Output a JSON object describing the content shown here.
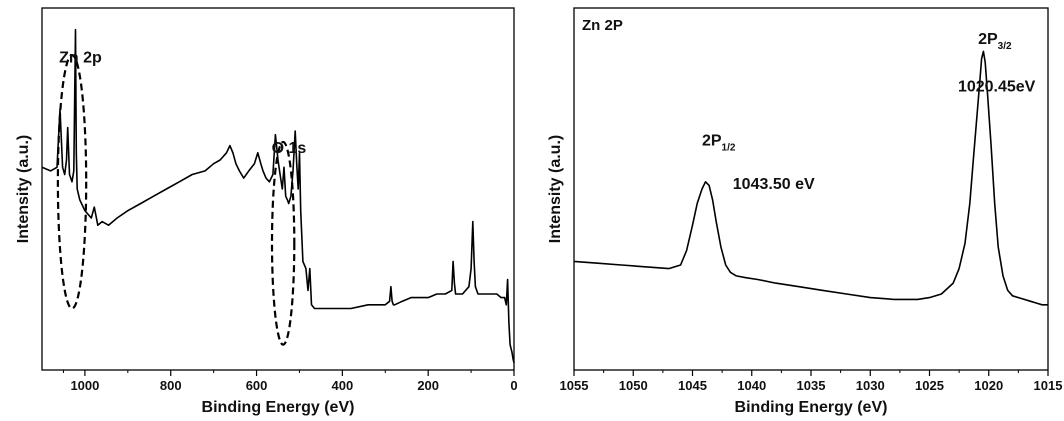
{
  "chart_data": [
    {
      "type": "line",
      "panel_title": "",
      "xlabel": "Binding Energy (eV)",
      "ylabel": "Intensity (a.u.)",
      "xlim": [
        1100,
        0
      ],
      "x_reversed": true,
      "ylim": [
        0,
        100
      ],
      "xticks": [
        1000,
        800,
        600,
        400,
        200,
        0
      ],
      "annotations": [
        {
          "text": "Zn 2p",
          "x": 1060,
          "y": 85
        },
        {
          "text": "O 1s",
          "x": 565,
          "y": 60
        }
      ],
      "highlights": [
        {
          "shape": "ellipse",
          "cx": 1030,
          "cy": 52,
          "rx": 33,
          "ry": 35
        },
        {
          "shape": "ellipse",
          "cx": 538,
          "cy": 35,
          "rx": 26,
          "ry": 28
        }
      ],
      "series": [
        {
          "x": [
            1100,
            1080,
            1065,
            1058,
            1052,
            1047,
            1043,
            1040,
            1036,
            1030,
            1026,
            1022,
            1020,
            1018,
            1012,
            1000,
            985,
            978,
            970,
            960,
            945,
            925,
            900,
            870,
            840,
            810,
            780,
            750,
            720,
            700,
            685,
            670,
            662,
            655,
            648,
            640,
            630,
            618,
            605,
            597,
            590,
            585,
            578,
            570,
            562,
            556,
            550,
            545,
            540,
            536,
            532,
            528,
            525,
            520,
            515,
            510,
            506,
            503,
            500,
            497,
            492,
            485,
            480,
            476,
            472,
            465,
            450,
            420,
            380,
            340,
            300,
            290,
            287,
            284,
            281,
            278,
            260,
            240,
            220,
            200,
            180,
            160,
            145,
            142,
            139,
            136,
            133,
            120,
            105,
            100,
            96,
            93,
            90,
            87,
            84,
            80,
            70,
            60,
            50,
            40,
            30,
            22,
            18,
            15,
            12,
            9,
            5,
            2,
            0
          ],
          "y": [
            56,
            55,
            56,
            72,
            56,
            54,
            58,
            67,
            54,
            52,
            55,
            94,
            60,
            50,
            47,
            44,
            42,
            45,
            40,
            41,
            40,
            42,
            44,
            46,
            48,
            50,
            52,
            54,
            55,
            57,
            58,
            60,
            62,
            60,
            57,
            55,
            53,
            55,
            57,
            60,
            57,
            55,
            53,
            52,
            54,
            65,
            58,
            54,
            50,
            56,
            48,
            47,
            46,
            48,
            55,
            66,
            56,
            50,
            60,
            44,
            30,
            28,
            22,
            28,
            18,
            17,
            17,
            17,
            17,
            18,
            18,
            19,
            23,
            19,
            18,
            18,
            19,
            20,
            20,
            20,
            21,
            21,
            22,
            30,
            24,
            21,
            21,
            21,
            23,
            28,
            41,
            30,
            23,
            22,
            21,
            21,
            21,
            21,
            21,
            21,
            20,
            20,
            18,
            25,
            13,
            7,
            5,
            3,
            2
          ]
        }
      ]
    },
    {
      "type": "line",
      "panel_title": "Zn 2P",
      "xlabel": "Binding Energy (eV)",
      "ylabel": "Intensity (a.u.)",
      "xlim": [
        1055,
        1015
      ],
      "x_reversed": true,
      "ylim": [
        0,
        100
      ],
      "xticks": [
        1055,
        1050,
        1045,
        1040,
        1035,
        1030,
        1025,
        1020,
        1015
      ],
      "annotations": [
        {
          "main": "2P",
          "sub": "1/2",
          "x": 1044.2,
          "y": 62
        },
        {
          "main": "1043.50 eV",
          "sub": "",
          "x": 1041.6,
          "y": 50
        },
        {
          "main": "2P",
          "sub": "3/2",
          "x": 1020.9,
          "y": 90
        },
        {
          "main": "1020.45eV",
          "sub": "",
          "x": 1022.6,
          "y": 77
        }
      ],
      "series": [
        {
          "x": [
            1055,
            1053,
            1051,
            1049,
            1047,
            1046,
            1045.5,
            1045,
            1044.6,
            1044.2,
            1043.9,
            1043.6,
            1043.3,
            1043,
            1042.6,
            1042.2,
            1041.8,
            1041.3,
            1040.5,
            1039.5,
            1038,
            1036,
            1034,
            1032,
            1030,
            1028,
            1026,
            1025,
            1024,
            1023,
            1022.5,
            1022,
            1021.6,
            1021.3,
            1021,
            1020.75,
            1020.6,
            1020.45,
            1020.3,
            1020.1,
            1019.8,
            1019.5,
            1019.2,
            1018.8,
            1018.4,
            1018,
            1017.5,
            1017,
            1016.5,
            1016,
            1015.5,
            1015
          ],
          "y": [
            30,
            29.5,
            29,
            28.5,
            28,
            29,
            33,
            40,
            46,
            50,
            52,
            51,
            47,
            41,
            34,
            29,
            27,
            26,
            25.5,
            25,
            24,
            23,
            22,
            21,
            20,
            19.5,
            19.5,
            20,
            21,
            24,
            28,
            35,
            46,
            58,
            70,
            80,
            86,
            88,
            85,
            76,
            62,
            46,
            34,
            26,
            22,
            20.5,
            20,
            19.5,
            19,
            18.5,
            18,
            18
          ]
        }
      ]
    }
  ]
}
